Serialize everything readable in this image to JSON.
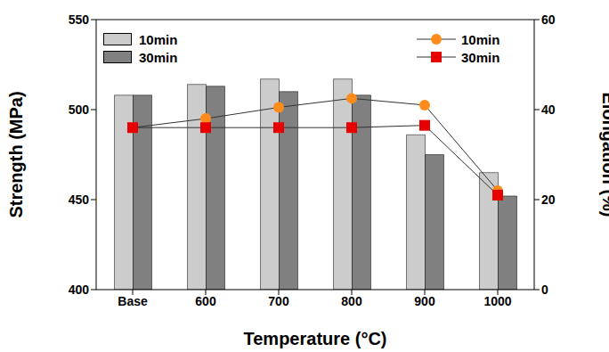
{
  "chart_data": {
    "type": "bar",
    "categories": [
      "Base",
      "600",
      "700",
      "800",
      "900",
      "1000"
    ],
    "x_label": "Temperature (°C)",
    "y_label": "Strength (MPa)",
    "y2_label": "Elongation (%)",
    "ylim": [
      400,
      550
    ],
    "yticks": [
      400,
      450,
      500,
      550
    ],
    "y2lim": [
      0,
      60
    ],
    "y2ticks": [
      0,
      20,
      40,
      60
    ],
    "grid": false,
    "series": [
      {
        "name": "10min",
        "type": "bar",
        "color": "#cccccc",
        "values": [
          508,
          514,
          517,
          517,
          486,
          465
        ]
      },
      {
        "name": "30min",
        "type": "bar",
        "color": "#808080",
        "values": [
          508,
          513,
          510,
          508,
          475,
          452
        ]
      },
      {
        "name": "10min",
        "type": "line",
        "axis": "y2",
        "color": "#ff8c1a",
        "marker": "circle",
        "values": [
          36,
          38,
          40.5,
          42.5,
          41,
          22
        ]
      },
      {
        "name": "30min",
        "type": "line",
        "axis": "y2",
        "color": "#e60000",
        "marker": "square",
        "values": [
          36,
          36,
          36,
          36,
          36.5,
          21
        ]
      }
    ]
  }
}
